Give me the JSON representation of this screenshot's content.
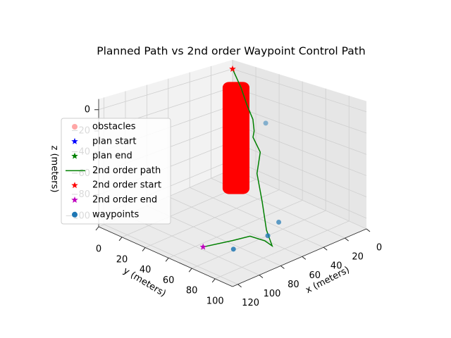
{
  "chart_data": {
    "type": "line3d",
    "title": "Planned Path vs 2nd order Waypoint Control Path",
    "xlabel": "x (meters)",
    "ylabel": "y (meters)",
    "zlabel": "z (meters)",
    "xlim": [
      0,
      125
    ],
    "ylim": [
      0,
      115
    ],
    "zlim": [
      -110,
      10
    ],
    "xticks": [
      0,
      20,
      40,
      60,
      80,
      100,
      120
    ],
    "yticks": [
      0,
      20,
      40,
      60,
      80,
      100
    ],
    "zticks": [
      0,
      {
        "value": -20,
        "label": "−20"
      },
      {
        "value": -40,
        "label": "−40"
      },
      {
        "value": -60,
        "label": "−60"
      },
      {
        "value": -80,
        "label": "−80"
      },
      {
        "value": -100,
        "label": "−100"
      }
    ],
    "grid": true,
    "legend": "left",
    "series": [
      {
        "name": "obstacles",
        "color": "#ff0000",
        "marker": "circle",
        "x": [
          25
        ],
        "y": [
          26
        ],
        "z": [
          -110,
          5
        ],
        "radius": 6
      },
      {
        "name": "plan start",
        "color": "#0000ff",
        "marker": "star"
      },
      {
        "name": "plan end",
        "color": "#008000",
        "marker": "star"
      },
      {
        "name": "2nd order path",
        "color": "#008000",
        "marker": "line",
        "x": [
          0,
          3,
          5,
          6,
          7,
          7,
          10,
          25,
          43,
          64,
          75,
          73,
          75,
          88,
          109
        ],
        "y": [
          0,
          10,
          17,
          23,
          25,
          24,
          33,
          44,
          65,
          88,
          103,
          95,
          84,
          81,
          75
        ],
        "z": [
          0,
          -15,
          -30,
          -42,
          -53,
          -60,
          -70,
          -80,
          -90,
          -97,
          -100,
          -100,
          -100,
          -100,
          -100
        ]
      },
      {
        "name": "2nd order start",
        "color": "#ff0000",
        "marker": "star",
        "x": [
          0
        ],
        "y": [
          0
        ],
        "z": [
          0
        ]
      },
      {
        "name": "2nd order end",
        "color": "#bf00bf",
        "marker": "star",
        "x": [
          109
        ],
        "y": [
          75
        ],
        "z": [
          -100
        ]
      },
      {
        "name": "waypoints",
        "color": "#1f77b4",
        "marker": "circle",
        "x": [
          12.5,
          46,
          66,
          97
        ],
        "y": [
          40,
          82,
          91,
          90
        ],
        "z": [
          -36,
          -100,
          -100,
          -100
        ]
      }
    ]
  }
}
